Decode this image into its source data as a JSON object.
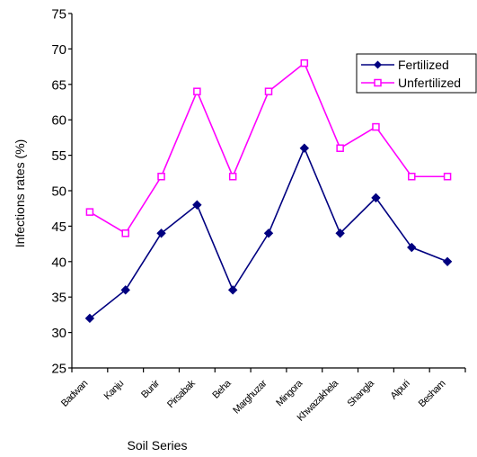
{
  "chart_data": {
    "type": "line",
    "title": "",
    "xlabel": "Soil Series",
    "ylabel": "Infections rates (%)",
    "categories": [
      "Badwan",
      "Kanju",
      "Bunir",
      "Pirsabak",
      "Beha",
      "Marghuzar",
      "Mingora",
      "Khwazakhela",
      "Shangla",
      "Alpuri",
      "Besham"
    ],
    "ylim": [
      25,
      75
    ],
    "yticks": [
      "25",
      "30",
      "35",
      "40",
      "45",
      "50",
      "55",
      "60",
      "65",
      "70",
      "75"
    ],
    "grid": false,
    "legend_position": "top-right",
    "series": [
      {
        "name": "Fertilized",
        "color": "#000080",
        "marker": "diamond",
        "values": [
          32,
          36,
          44,
          48,
          36,
          44,
          56,
          44,
          49,
          42,
          40
        ]
      },
      {
        "name": "Unfertilized",
        "color": "#ff00ff",
        "marker": "square",
        "values": [
          47,
          44,
          52,
          64,
          52,
          64,
          68,
          56,
          59,
          52,
          52
        ]
      }
    ]
  }
}
